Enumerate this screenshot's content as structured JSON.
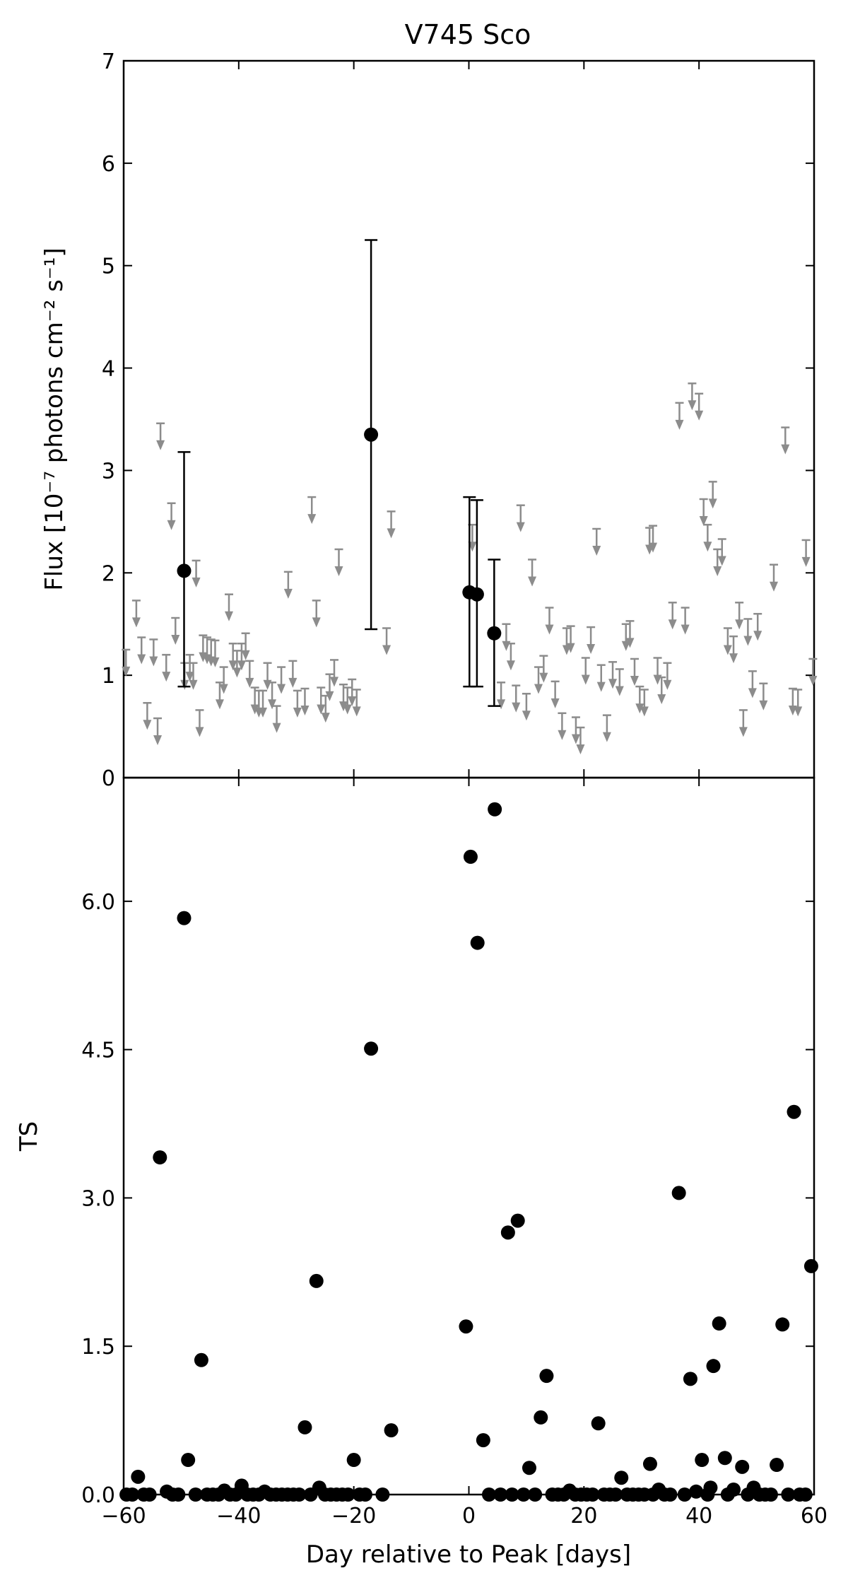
{
  "chart_data": [
    {
      "panel": "top",
      "type": "scatter",
      "title": "V745 Sco",
      "xlabel": "",
      "ylabel": "Flux [10⁻⁷ photons cm⁻² s⁻¹]",
      "xlim": [
        -60,
        60
      ],
      "ylim": [
        0,
        7
      ],
      "yticks": [
        "0",
        "1",
        "2",
        "3",
        "4",
        "5",
        "6",
        "7"
      ],
      "grid": false,
      "detections": [
        {
          "x": -49.5,
          "y": 2.02,
          "ylow": 0.89,
          "yhigh": 3.18
        },
        {
          "x": -17.0,
          "y": 3.35,
          "ylow": 1.45,
          "yhigh": 5.25
        },
        {
          "x": 0.1,
          "y": 1.81,
          "ylow": 0.89,
          "yhigh": 2.74
        },
        {
          "x": 1.4,
          "y": 1.79,
          "ylow": 0.89,
          "yhigh": 2.71
        },
        {
          "x": 4.4,
          "y": 1.41,
          "ylow": 0.7,
          "yhigh": 2.13
        }
      ],
      "upper_limits": [
        {
          "x": -59.6,
          "y": 1.25
        },
        {
          "x": -57.8,
          "y": 1.73
        },
        {
          "x": -56.9,
          "y": 1.37
        },
        {
          "x": -55.9,
          "y": 0.73
        },
        {
          "x": -54.8,
          "y": 1.35
        },
        {
          "x": -54.1,
          "y": 0.58
        },
        {
          "x": -53.6,
          "y": 3.46
        },
        {
          "x": -52.6,
          "y": 1.2
        },
        {
          "x": -51.7,
          "y": 2.68
        },
        {
          "x": -51.0,
          "y": 1.56
        },
        {
          "x": -49.4,
          "y": 1.12
        },
        {
          "x": -48.5,
          "y": 1.2
        },
        {
          "x": -47.9,
          "y": 1.12
        },
        {
          "x": -47.4,
          "y": 2.12
        },
        {
          "x": -46.8,
          "y": 0.66
        },
        {
          "x": -46.2,
          "y": 1.39
        },
        {
          "x": -45.5,
          "y": 1.37
        },
        {
          "x": -44.8,
          "y": 1.35
        },
        {
          "x": -44.1,
          "y": 1.34
        },
        {
          "x": -43.3,
          "y": 0.93
        },
        {
          "x": -42.6,
          "y": 1.08
        },
        {
          "x": -41.7,
          "y": 1.79
        },
        {
          "x": -41.0,
          "y": 1.31
        },
        {
          "x": -40.3,
          "y": 1.24
        },
        {
          "x": -39.5,
          "y": 1.31
        },
        {
          "x": -38.8,
          "y": 1.41
        },
        {
          "x": -38.1,
          "y": 1.14
        },
        {
          "x": -37.2,
          "y": 0.88
        },
        {
          "x": -36.5,
          "y": 0.85
        },
        {
          "x": -35.8,
          "y": 0.85
        },
        {
          "x": -35.0,
          "y": 1.12
        },
        {
          "x": -34.2,
          "y": 0.93
        },
        {
          "x": -33.4,
          "y": 0.7
        },
        {
          "x": -32.6,
          "y": 1.08
        },
        {
          "x": -31.4,
          "y": 2.01
        },
        {
          "x": -30.6,
          "y": 1.14
        },
        {
          "x": -29.8,
          "y": 0.85
        },
        {
          "x": -28.5,
          "y": 0.87
        },
        {
          "x": -27.3,
          "y": 2.74
        },
        {
          "x": -26.5,
          "y": 1.73
        },
        {
          "x": -25.7,
          "y": 0.88
        },
        {
          "x": -24.9,
          "y": 0.8
        },
        {
          "x": -24.2,
          "y": 1.01
        },
        {
          "x": -23.4,
          "y": 1.15
        },
        {
          "x": -22.6,
          "y": 2.23
        },
        {
          "x": -21.8,
          "y": 0.91
        },
        {
          "x": -21.1,
          "y": 0.88
        },
        {
          "x": -20.3,
          "y": 0.96
        },
        {
          "x": -19.5,
          "y": 0.86
        },
        {
          "x": -14.3,
          "y": 1.46
        },
        {
          "x": -13.5,
          "y": 2.6
        },
        {
          "x": 0.6,
          "y": 2.47
        },
        {
          "x": 5.6,
          "y": 0.93
        },
        {
          "x": 6.5,
          "y": 1.5
        },
        {
          "x": 7.3,
          "y": 1.31
        },
        {
          "x": 8.2,
          "y": 0.9
        },
        {
          "x": 9.0,
          "y": 2.66
        },
        {
          "x": 10.0,
          "y": 0.82
        },
        {
          "x": 11.0,
          "y": 2.13
        },
        {
          "x": 12.1,
          "y": 1.08
        },
        {
          "x": 13.0,
          "y": 1.19
        },
        {
          "x": 14.0,
          "y": 1.66
        },
        {
          "x": 15.0,
          "y": 0.94
        },
        {
          "x": 16.2,
          "y": 0.63
        },
        {
          "x": 17.0,
          "y": 1.46
        },
        {
          "x": 17.7,
          "y": 1.48
        },
        {
          "x": 18.6,
          "y": 0.59
        },
        {
          "x": 19.4,
          "y": 0.49
        },
        {
          "x": 20.3,
          "y": 1.17
        },
        {
          "x": 21.2,
          "y": 1.47
        },
        {
          "x": 22.2,
          "y": 2.43
        },
        {
          "x": 23.0,
          "y": 1.1
        },
        {
          "x": 24.0,
          "y": 0.61
        },
        {
          "x": 25.0,
          "y": 1.13
        },
        {
          "x": 26.2,
          "y": 1.06
        },
        {
          "x": 27.3,
          "y": 1.5
        },
        {
          "x": 28.0,
          "y": 1.53
        },
        {
          "x": 28.8,
          "y": 1.16
        },
        {
          "x": 29.7,
          "y": 0.89
        },
        {
          "x": 30.5,
          "y": 0.86
        },
        {
          "x": 31.4,
          "y": 2.44
        },
        {
          "x": 32.0,
          "y": 2.46
        },
        {
          "x": 32.8,
          "y": 1.17
        },
        {
          "x": 33.5,
          "y": 0.98
        },
        {
          "x": 34.5,
          "y": 1.12
        },
        {
          "x": 35.4,
          "y": 1.71
        },
        {
          "x": 36.6,
          "y": 3.66
        },
        {
          "x": 37.6,
          "y": 1.66
        },
        {
          "x": 38.8,
          "y": 3.85
        },
        {
          "x": 40.0,
          "y": 3.75
        },
        {
          "x": 40.8,
          "y": 2.72
        },
        {
          "x": 41.5,
          "y": 2.47
        },
        {
          "x": 42.4,
          "y": 2.89
        },
        {
          "x": 43.2,
          "y": 2.23
        },
        {
          "x": 44.0,
          "y": 2.33
        },
        {
          "x": 45.0,
          "y": 1.46
        },
        {
          "x": 46.0,
          "y": 1.38
        },
        {
          "x": 47.0,
          "y": 1.71
        },
        {
          "x": 47.7,
          "y": 0.66
        },
        {
          "x": 48.5,
          "y": 1.55
        },
        {
          "x": 49.3,
          "y": 1.04
        },
        {
          "x": 50.2,
          "y": 1.6
        },
        {
          "x": 51.2,
          "y": 0.92
        },
        {
          "x": 53.0,
          "y": 2.08
        },
        {
          "x": 55.0,
          "y": 3.42
        },
        {
          "x": 56.3,
          "y": 0.87
        },
        {
          "x": 57.2,
          "y": 0.86
        },
        {
          "x": 58.6,
          "y": 2.32
        },
        {
          "x": 59.8,
          "y": 1.16
        }
      ]
    },
    {
      "panel": "bottom",
      "type": "scatter",
      "title": "",
      "xlabel": "Day relative to Peak [days]",
      "ylabel": "TS",
      "xlim": [
        -60,
        60
      ],
      "ylim": [
        0,
        7.25
      ],
      "xticks": [
        "−60",
        "−40",
        "−20",
        "0",
        "20",
        "40",
        "60"
      ],
      "xtick_values": [
        -60,
        -40,
        -20,
        0,
        20,
        40,
        60
      ],
      "yticks": [
        "0.0",
        "1.5",
        "3.0",
        "4.5",
        "6.0"
      ],
      "ytick_values": [
        0,
        1.5,
        3.0,
        4.5,
        6.0
      ],
      "grid": false,
      "points": [
        {
          "x": -57.5,
          "y": 0.18
        },
        {
          "x": -53.7,
          "y": 3.41
        },
        {
          "x": -49.5,
          "y": 5.83
        },
        {
          "x": -48.8,
          "y": 0.35
        },
        {
          "x": -46.5,
          "y": 1.36
        },
        {
          "x": -39.5,
          "y": 0.09
        },
        {
          "x": -28.5,
          "y": 0.68
        },
        {
          "x": -26.5,
          "y": 2.16
        },
        {
          "x": -26.0,
          "y": 0.07
        },
        {
          "x": -20.0,
          "y": 0.35
        },
        {
          "x": -17.0,
          "y": 4.51
        },
        {
          "x": -13.5,
          "y": 0.65
        },
        {
          "x": -0.5,
          "y": 1.7
        },
        {
          "x": 0.3,
          "y": 6.45
        },
        {
          "x": 1.5,
          "y": 5.58
        },
        {
          "x": 2.5,
          "y": 0.55
        },
        {
          "x": 4.5,
          "y": 6.93
        },
        {
          "x": 6.8,
          "y": 2.65
        },
        {
          "x": 8.5,
          "y": 2.77
        },
        {
          "x": 10.5,
          "y": 0.27
        },
        {
          "x": 12.5,
          "y": 0.78
        },
        {
          "x": 13.5,
          "y": 1.2
        },
        {
          "x": 22.5,
          "y": 0.72
        },
        {
          "x": 26.5,
          "y": 0.17
        },
        {
          "x": 31.5,
          "y": 0.31
        },
        {
          "x": 33.0,
          "y": 0.05
        },
        {
          "x": 36.5,
          "y": 3.05
        },
        {
          "x": 38.5,
          "y": 1.17
        },
        {
          "x": 40.5,
          "y": 0.35
        },
        {
          "x": 42.0,
          "y": 0.07
        },
        {
          "x": 42.5,
          "y": 1.3
        },
        {
          "x": 43.5,
          "y": 1.73
        },
        {
          "x": 44.5,
          "y": 0.37
        },
        {
          "x": 46.0,
          "y": 0.05
        },
        {
          "x": 47.5,
          "y": 0.28
        },
        {
          "x": 49.5,
          "y": 0.07
        },
        {
          "x": 53.5,
          "y": 0.3
        },
        {
          "x": 54.5,
          "y": 1.72
        },
        {
          "x": 56.5,
          "y": 3.87
        },
        {
          "x": 59.5,
          "y": 2.31
        },
        {
          "x": -59.5,
          "y": 0.0
        },
        {
          "x": -58.5,
          "y": 0.0
        },
        {
          "x": -56.5,
          "y": 0.0
        },
        {
          "x": -55.5,
          "y": 0.0
        },
        {
          "x": -52.5,
          "y": 0.03
        },
        {
          "x": -51.5,
          "y": 0.0
        },
        {
          "x": -50.5,
          "y": 0.0
        },
        {
          "x": -47.5,
          "y": 0.0
        },
        {
          "x": -45.5,
          "y": 0.0
        },
        {
          "x": -44.5,
          "y": 0.0
        },
        {
          "x": -43.5,
          "y": 0.0
        },
        {
          "x": -42.5,
          "y": 0.04
        },
        {
          "x": -41.5,
          "y": 0.0
        },
        {
          "x": -40.5,
          "y": 0.0
        },
        {
          "x": -38.5,
          "y": 0.0
        },
        {
          "x": -37.5,
          "y": 0.0
        },
        {
          "x": -36.5,
          "y": 0.0
        },
        {
          "x": -35.5,
          "y": 0.03
        },
        {
          "x": -34.5,
          "y": 0.0
        },
        {
          "x": -33.5,
          "y": 0.0
        },
        {
          "x": -32.5,
          "y": 0.0
        },
        {
          "x": -31.5,
          "y": 0.0
        },
        {
          "x": -30.5,
          "y": 0.0
        },
        {
          "x": -29.5,
          "y": 0.0
        },
        {
          "x": -27.5,
          "y": 0.0
        },
        {
          "x": -25.0,
          "y": 0.0
        },
        {
          "x": -24.0,
          "y": 0.0
        },
        {
          "x": -23.0,
          "y": 0.0
        },
        {
          "x": -22.0,
          "y": 0.0
        },
        {
          "x": -21.0,
          "y": 0.0
        },
        {
          "x": -19.0,
          "y": 0.0
        },
        {
          "x": -18.0,
          "y": 0.0
        },
        {
          "x": -15.0,
          "y": 0.0
        },
        {
          "x": 3.5,
          "y": 0.0
        },
        {
          "x": 5.5,
          "y": 0.0
        },
        {
          "x": 7.5,
          "y": 0.0
        },
        {
          "x": 9.5,
          "y": 0.0
        },
        {
          "x": 11.5,
          "y": 0.0
        },
        {
          "x": 14.5,
          "y": 0.0
        },
        {
          "x": 15.5,
          "y": 0.0
        },
        {
          "x": 16.5,
          "y": 0.0
        },
        {
          "x": 17.5,
          "y": 0.04
        },
        {
          "x": 18.5,
          "y": 0.0
        },
        {
          "x": 19.5,
          "y": 0.0
        },
        {
          "x": 20.5,
          "y": 0.0
        },
        {
          "x": 21.5,
          "y": 0.0
        },
        {
          "x": 23.5,
          "y": 0.0
        },
        {
          "x": 24.5,
          "y": 0.0
        },
        {
          "x": 25.5,
          "y": 0.0
        },
        {
          "x": 27.5,
          "y": 0.0
        },
        {
          "x": 28.5,
          "y": 0.0
        },
        {
          "x": 29.5,
          "y": 0.0
        },
        {
          "x": 30.5,
          "y": 0.0
        },
        {
          "x": 32.0,
          "y": 0.0
        },
        {
          "x": 34.0,
          "y": 0.0
        },
        {
          "x": 35.0,
          "y": 0.0
        },
        {
          "x": 37.5,
          "y": 0.0
        },
        {
          "x": 39.5,
          "y": 0.03
        },
        {
          "x": 41.5,
          "y": 0.0
        },
        {
          "x": 45.0,
          "y": 0.0
        },
        {
          "x": 48.5,
          "y": 0.0
        },
        {
          "x": 50.5,
          "y": 0.0
        },
        {
          "x": 51.5,
          "y": 0.0
        },
        {
          "x": 52.5,
          "y": 0.0
        },
        {
          "x": 55.5,
          "y": 0.0
        },
        {
          "x": 57.5,
          "y": 0.0
        },
        {
          "x": 58.5,
          "y": 0.0
        }
      ]
    }
  ]
}
